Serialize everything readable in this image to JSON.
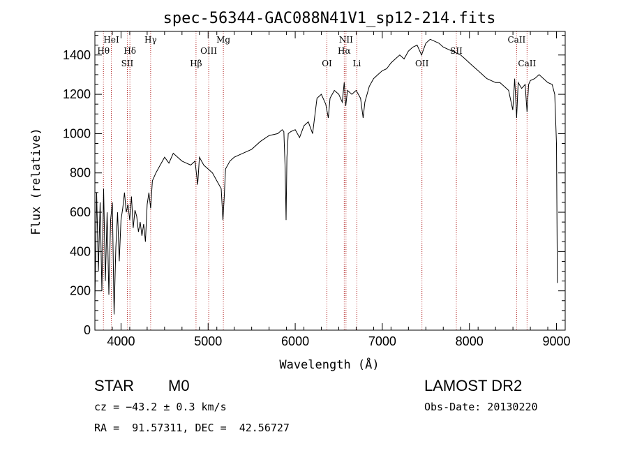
{
  "chart_data": {
    "type": "line",
    "title": "spec-56344-GAC088N41V1_sp12-214.fits",
    "xlabel": "Wavelength (Å)",
    "ylabel": "Flux (relative)",
    "xlim": [
      3700,
      9100
    ],
    "ylim": [
      0,
      1520
    ],
    "xticks": [
      4000,
      5000,
      6000,
      7000,
      8000,
      9000
    ],
    "yticks": [
      0,
      200,
      400,
      600,
      800,
      1000,
      1200,
      1400
    ],
    "grid": false,
    "series": [
      {
        "x": [
          3700,
          3720,
          3740,
          3760,
          3780,
          3800,
          3820,
          3840,
          3860,
          3880,
          3900,
          3920,
          3940,
          3960,
          3980,
          4000,
          4020,
          4040,
          4060,
          4080,
          4100,
          4120,
          4140,
          4160,
          4180,
          4200,
          4220,
          4240,
          4260,
          4280,
          4300,
          4320,
          4340,
          4360,
          4380,
          4400,
          4450,
          4500,
          4550,
          4600,
          4650,
          4700,
          4750,
          4800,
          4850,
          4880,
          4900,
          4950,
          5000,
          5050,
          5100,
          5150,
          5170,
          5185,
          5200,
          5250,
          5300,
          5400,
          5500,
          5600,
          5700,
          5800,
          5850,
          5870,
          5885,
          5895,
          5905,
          5920,
          5950,
          6000,
          6050,
          6100,
          6150,
          6200,
          6250,
          6300,
          6350,
          6380,
          6400,
          6450,
          6500,
          6540,
          6563,
          6580,
          6600,
          6650,
          6700,
          6750,
          6780,
          6800,
          6850,
          6900,
          6950,
          7000,
          7050,
          7100,
          7150,
          7200,
          7250,
          7300,
          7350,
          7400,
          7450,
          7500,
          7550,
          7600,
          7650,
          7700,
          7750,
          7800,
          7850,
          7900,
          7950,
          8000,
          8050,
          8100,
          8150,
          8200,
          8250,
          8300,
          8350,
          8400,
          8450,
          8498,
          8520,
          8542,
          8560,
          8600,
          8640,
          8662,
          8680,
          8700,
          8750,
          8800,
          8850,
          8900,
          8950,
          8980,
          9000,
          9010
        ],
        "y": [
          150,
          700,
          300,
          650,
          200,
          720,
          250,
          600,
          180,
          560,
          650,
          80,
          420,
          600,
          350,
          560,
          620,
          700,
          600,
          640,
          560,
          680,
          520,
          610,
          580,
          500,
          550,
          480,
          540,
          450,
          640,
          700,
          620,
          760,
          780,
          800,
          840,
          880,
          850,
          900,
          880,
          860,
          850,
          840,
          860,
          740,
          880,
          840,
          820,
          800,
          760,
          720,
          560,
          680,
          820,
          860,
          880,
          900,
          920,
          960,
          990,
          1000,
          1020,
          1010,
          820,
          560,
          880,
          1000,
          1010,
          1020,
          980,
          1040,
          1060,
          1000,
          1180,
          1200,
          1150,
          1080,
          1180,
          1220,
          1200,
          1160,
          1260,
          1140,
          1220,
          1200,
          1220,
          1180,
          1080,
          1160,
          1240,
          1280,
          1300,
          1320,
          1330,
          1360,
          1380,
          1400,
          1380,
          1420,
          1440,
          1450,
          1400,
          1460,
          1480,
          1470,
          1460,
          1440,
          1430,
          1420,
          1410,
          1400,
          1380,
          1360,
          1340,
          1320,
          1300,
          1280,
          1270,
          1260,
          1260,
          1240,
          1220,
          1120,
          1280,
          1080,
          1260,
          1230,
          1250,
          1110,
          1250,
          1270,
          1280,
          1300,
          1280,
          1260,
          1250,
          1200,
          950,
          240
        ]
      }
    ],
    "spectral_lines": [
      {
        "label": "Hθ",
        "x": 3798,
        "row": 2
      },
      {
        "label": "HeI",
        "x": 3889,
        "row": 1
      },
      {
        "label": "Hδ",
        "x": 4102,
        "row": 2
      },
      {
        "label": "SII",
        "x": 4072,
        "row": 3
      },
      {
        "label": "Hγ",
        "x": 4340,
        "row": 1
      },
      {
        "label": "Hβ",
        "x": 4861,
        "row": 3
      },
      {
        "label": "OIII",
        "x": 5007,
        "row": 2
      },
      {
        "label": "Mg",
        "x": 5175,
        "row": 1
      },
      {
        "label": "OI",
        "x": 6364,
        "row": 3
      },
      {
        "label": "NII",
        "x": 6583,
        "row": 1
      },
      {
        "label": "Hα",
        "x": 6563,
        "row": 2
      },
      {
        "label": "Li",
        "x": 6708,
        "row": 3
      },
      {
        "label": "OII",
        "x": 7455,
        "row": 3
      },
      {
        "label": "SII",
        "x": 7850,
        "row": 2
      },
      {
        "label": "CaII",
        "x": 8542,
        "row": 1
      },
      {
        "label": "CaII",
        "x": 8662,
        "row": 3
      }
    ],
    "line_color": "#000000",
    "marker_color": "#b22222"
  },
  "info": {
    "class": "STAR",
    "subclass": "M0",
    "survey": "LAMOST DR2",
    "cz": "cz = −43.2 ± 0.3 km/s",
    "obs_date": "Obs-Date: 20130220",
    "coords": "RA =  91.57311, DEC =  42.56727"
  }
}
